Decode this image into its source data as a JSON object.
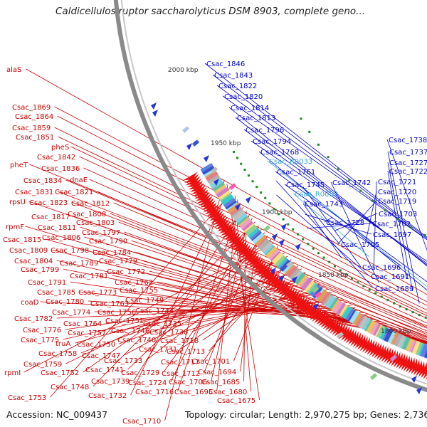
{
  "title": "Caldicellulosiruptor saccharolyticus DSM 8903, complete geno...",
  "footer": {
    "accession": "Accession: NC_009437",
    "summary": "Topology: circular; Length: 2,970,275 bp; Genes: 2,736"
  },
  "colors": {
    "gene_label": "#cc0000",
    "gene_label_right": "#0000cc",
    "rna_label": "#33aadd",
    "arrow": "#ee1111",
    "ring": "#8a8a8a",
    "tick": "#228822"
  },
  "scale_labels": [
    "2000 kbp",
    "1950 kbp",
    "1900 kbp",
    "1850 kbp",
    "1800 kbp"
  ],
  "left_labels": [
    "alaS",
    "Csac_1869",
    "Csac_1864",
    "Csac_1859",
    "Csac_1851",
    "pheS",
    "Csac_1842",
    "pheT",
    "Csac_1836",
    "Csac_1834",
    "dnaE",
    "Csac_1831",
    "Csac_1821",
    "rpsU",
    "Csac_1823",
    "Csac_1812",
    "Csac_1808",
    "Csac_1817",
    "Csac_1803",
    "rpmF",
    "Csac_1811",
    "Csac_1797",
    "Csac_1815",
    "Csac_1806",
    "Csac_1790",
    "Csac_1809",
    "Csac_1798",
    "Csac_1784",
    "Csac_1804",
    "Csac_1779",
    "Csac_1799",
    "Csac_1789",
    "Csac_1772",
    "Csac_1781",
    "Csac_1762",
    "Csac_1791",
    "Csac_1755",
    "Csac_1785",
    "Csac_1773",
    "Csac_1749",
    "coaD",
    "Csac_1780",
    "Csac_1763",
    "Csac_1744",
    "Csac_1774",
    "Csac_1756",
    "Csac_1782",
    "Csac_1751",
    "Csac_1764",
    "Csac_1746",
    "Csac_1735",
    "Csac_1776",
    "Csac_1757",
    "Csac_1740",
    "Csac_1730",
    "Csac_1775",
    "truA",
    "Csac_1750",
    "Csac_1718",
    "Csac_1758",
    "Csac_1731",
    "Csac_1747",
    "Csac_1713",
    "Csac_1759",
    "Csac_1733",
    "Csac_1717",
    "Csac_1701",
    "rpmI",
    "Csac_1752",
    "Csac_1741",
    "Csac_1729",
    "Csac_1712",
    "Csac_1694",
    "Csac_1748",
    "Csac_1724",
    "Csac_1706",
    "Csac_1685",
    "Csac_1739",
    "Csac_1716",
    "Csac_1695",
    "Csac_1680",
    "Csac_1753",
    "Csac_1732",
    "Csac_1675",
    "Csac_1710"
  ],
  "right_labels": [
    "Csac_1846",
    "Csac_1843",
    "Csac_1822",
    "Csac_1820",
    "Csac_1814",
    "Csac_1813",
    "Csac_1796",
    "Csac_1794",
    "Csac_1768",
    "Csac_R0033",
    "Csac_1761",
    "Csac_1738",
    "Csac_1737",
    "Csac_1727",
    "Csac_1722",
    "Csac_1745",
    "Csac_1742",
    "Csac_1721",
    "Csac_R0032",
    "Csac_1720",
    "Csac_1743",
    "Csac_1719",
    "Csac_1703",
    "Csac_1728",
    "Csac_1702",
    "Csac_1697",
    "Csac_1705",
    "Csac_1696",
    "Csac_1691",
    "Csac_1689"
  ]
}
